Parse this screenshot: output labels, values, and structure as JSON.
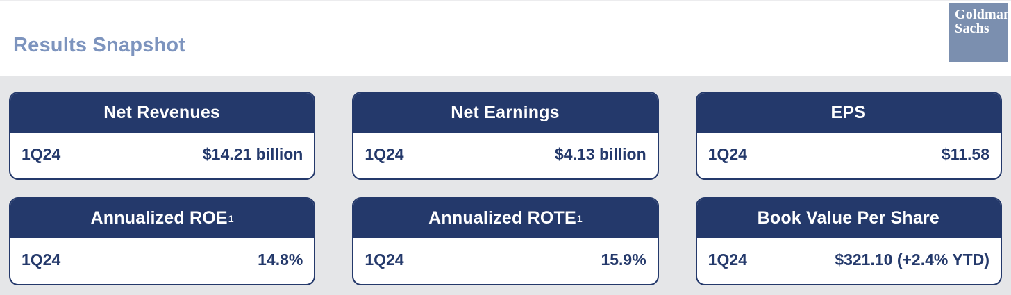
{
  "page": {
    "title": "Results Snapshot"
  },
  "logo": {
    "line1": "Goldman",
    "line2": "Sachs"
  },
  "colors": {
    "navy": "#24396B",
    "title_blue": "#7D94BE",
    "logo_blue": "#7B8FAF",
    "panel_gray": "#E5E6E8",
    "card_background": "#FFFFFF",
    "header_text": "#FFFFFF"
  },
  "cards": [
    {
      "title": "Net Revenues",
      "period": "1Q24",
      "value": "$14.21 billion"
    },
    {
      "title": "Net Earnings",
      "period": "1Q24",
      "value": "$4.13 billion"
    },
    {
      "title": "EPS",
      "period": "1Q24",
      "value": "$11.58"
    },
    {
      "title": "Annualized ROE",
      "sup": "1",
      "period": "1Q24",
      "value": "14.8%"
    },
    {
      "title": "Annualized ROTE",
      "sup": "1",
      "period": "1Q24",
      "value": "15.9%"
    },
    {
      "title": "Book Value Per Share",
      "period": "1Q24",
      "value": "$321.10 (+2.4% YTD)"
    }
  ]
}
